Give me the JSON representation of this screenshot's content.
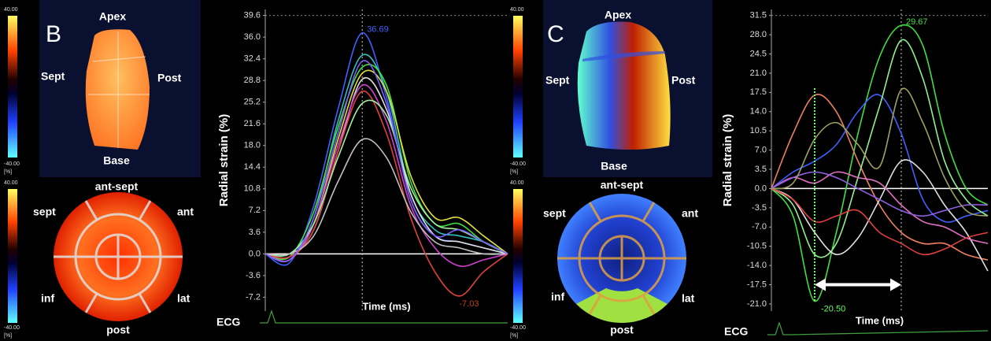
{
  "panels": [
    {
      "letter": "B",
      "colorbars": [
        {
          "max": "40.00",
          "unit": "[%]",
          "min": "-40.00"
        },
        {
          "max": "40.00",
          "unit": "[%]",
          "min": "-40.00"
        }
      ],
      "heart_labels": {
        "apex": "Apex",
        "sept": "Sept",
        "post": "Post",
        "base": "Base"
      },
      "bullseye_labels": {
        "ant_sept": "ant-sept",
        "sept": "sept",
        "ant": "ant",
        "inf": "inf",
        "lat": "lat",
        "post": "post"
      }
    },
    {
      "letter": "C",
      "colorbars": [
        {
          "max": "40.00",
          "unit": "[%]",
          "min": "-40.00"
        },
        {
          "max": "40.00",
          "unit": "[%]",
          "min": "-40.00"
        }
      ],
      "heart_labels": {
        "apex": "Apex",
        "sept": "Sept",
        "post": "Post",
        "base": "Base"
      },
      "bullseye_labels": {
        "ant_sept": "ant-sept",
        "sept": "sept",
        "ant": "ant",
        "inf": "inf",
        "lat": "lat",
        "post": "post"
      }
    }
  ],
  "chart_data": [
    {
      "type": "line",
      "ylabel": "Radial strain (%)",
      "xlabel": "Time (ms)",
      "ecg_label": "ECG",
      "categories": [
        null,
        null,
        null,
        null,
        null,
        null,
        null,
        null,
        null,
        null,
        null
      ],
      "ylim": [
        -9.5,
        40.6
      ],
      "yticks": [
        {
          "value": 39.6,
          "label": "39.6"
        },
        {
          "value": 36,
          "label": "36.0"
        },
        {
          "value": 32.4,
          "label": "32.4"
        },
        {
          "value": 28.8,
          "label": "28.8"
        },
        {
          "value": 25.2,
          "label": "25.2"
        },
        {
          "value": 21.6,
          "label": "21.6"
        },
        {
          "value": 18,
          "label": "18.0"
        },
        {
          "value": 14.4,
          "label": "14.4"
        },
        {
          "value": 10.8,
          "label": "10.8"
        },
        {
          "value": 7.2,
          "label": "7.2"
        },
        {
          "value": 3.6,
          "label": "3.6"
        },
        {
          "value": 0,
          "label": "0.0"
        },
        {
          "value": -3.6,
          "label": "-3.6"
        },
        {
          "value": -7.2,
          "label": "-7.2"
        }
      ],
      "series": [
        {
          "color": "#4060ff",
          "values": [
            0,
            -1.5,
            8,
            24,
            36.7,
            26,
            9,
            3,
            2,
            1,
            0
          ]
        },
        {
          "color": "#30c0c0",
          "values": [
            0,
            -1,
            6,
            22,
            33,
            27,
            10,
            4,
            3,
            2,
            0
          ]
        },
        {
          "color": "#40e040",
          "values": [
            0,
            -0.5,
            7,
            21,
            31,
            28,
            12,
            5,
            5,
            2,
            0
          ]
        },
        {
          "color": "#e0e040",
          "values": [
            0,
            -1,
            5,
            19,
            30,
            27,
            13,
            6,
            6,
            3,
            0
          ]
        },
        {
          "color": "#e0e0e0",
          "values": [
            0,
            -0.5,
            4,
            17,
            29,
            24,
            10,
            3,
            2,
            1,
            0
          ]
        },
        {
          "color": "#d040d0",
          "values": [
            0,
            -1,
            5,
            18,
            28,
            22,
            8,
            1,
            -2,
            -1,
            0
          ]
        },
        {
          "color": "#e04040",
          "values": [
            0,
            -0.5,
            4,
            17,
            27,
            20,
            6,
            -3,
            -7,
            -3,
            0
          ]
        },
        {
          "color": "#a0f0a0",
          "values": [
            0,
            0,
            5,
            16,
            25,
            23,
            11,
            5,
            4,
            2,
            0
          ]
        },
        {
          "color": "#c0c0c0",
          "values": [
            0,
            0,
            3,
            12,
            19,
            16,
            7,
            2,
            1,
            0,
            0
          ]
        },
        {
          "color": "#8060ff",
          "values": [
            0,
            -1,
            6,
            20,
            32,
            25,
            9,
            3,
            4,
            2,
            0
          ]
        }
      ],
      "annotations": [
        {
          "text": "36.69"
        },
        {
          "text": "-7.03"
        }
      ]
    },
    {
      "type": "line",
      "ylabel": "Radial strain (%)",
      "xlabel": "Time (ms)",
      "ecg_label": "ECG",
      "categories": [
        null,
        null,
        null,
        null,
        null,
        null,
        null,
        null,
        null,
        null,
        null
      ],
      "ylim": [
        -22.3,
        32.6
      ],
      "yticks": [
        {
          "value": 31.5,
          "label": "31.5"
        },
        {
          "value": 28,
          "label": "28.0"
        },
        {
          "value": 24.5,
          "label": "24.5"
        },
        {
          "value": 21,
          "label": "21.0"
        },
        {
          "value": 17.5,
          "label": "17.5"
        },
        {
          "value": 14,
          "label": "14.0"
        },
        {
          "value": 10.5,
          "label": "10.5"
        },
        {
          "value": 7,
          "label": "7.0"
        },
        {
          "value": 3.5,
          "label": "3.5"
        },
        {
          "value": 0,
          "label": "0.0"
        },
        {
          "value": -3.5,
          "label": "-3.5"
        },
        {
          "value": -7,
          "label": "-7.0"
        },
        {
          "value": -10.5,
          "label": "-10.5"
        },
        {
          "value": -14,
          "label": "-14.0"
        },
        {
          "value": -17.5,
          "label": "-17.5"
        },
        {
          "value": -21,
          "label": "-21.0"
        }
      ],
      "series": [
        {
          "color": "#40e040",
          "values": [
            0,
            -5,
            -20.5,
            -8,
            10,
            24,
            29.7,
            26,
            10,
            0,
            -3
          ]
        },
        {
          "color": "#f08060",
          "values": [
            0,
            10,
            17,
            14,
            5,
            -3,
            -8,
            -10,
            -10,
            -12,
            -13
          ]
        },
        {
          "color": "#4060ff",
          "values": [
            0,
            3,
            5,
            8,
            14,
            17,
            10,
            -2,
            -6,
            -5,
            -4
          ]
        },
        {
          "color": "#90f090",
          "values": [
            0,
            -3,
            -12,
            -10,
            2,
            15,
            27,
            20,
            5,
            -2,
            -5
          ]
        },
        {
          "color": "#e0e0e0",
          "values": [
            0,
            -2,
            -8,
            -12,
            -9,
            -2,
            5,
            3,
            -3,
            -8,
            -15
          ]
        },
        {
          "color": "#e070c0",
          "values": [
            0,
            2,
            1,
            3,
            2,
            1,
            -3,
            -6,
            -7,
            -9,
            -10
          ]
        },
        {
          "color": "#9060e0",
          "values": [
            0,
            2,
            3,
            2,
            0,
            -2,
            -4,
            -5,
            -4,
            -3,
            -3
          ]
        },
        {
          "color": "#e04040",
          "values": [
            0,
            -2,
            -6,
            -5,
            -4,
            -8,
            -10,
            -12,
            -11,
            -9,
            -8
          ]
        },
        {
          "color": "#a0a060",
          "values": [
            0,
            1,
            9,
            12,
            8,
            4,
            18,
            12,
            2,
            -4,
            -5
          ]
        }
      ],
      "annotations": [
        {
          "text": "29.67"
        },
        {
          "text": "-20.50"
        }
      ]
    }
  ]
}
